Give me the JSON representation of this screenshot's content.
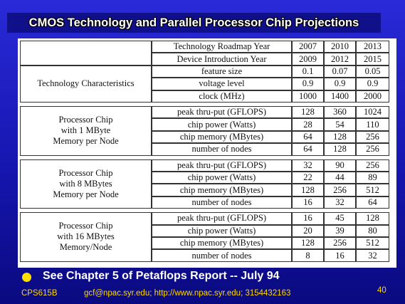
{
  "header": {
    "title": "CMOS Technology and Parallel Processor Chip Projections"
  },
  "table": {
    "header_rows": [
      {
        "label": "Technology Roadmap Year",
        "values": [
          "2007",
          "2010",
          "2013"
        ]
      },
      {
        "label": "Device Introduction Year",
        "values": [
          "2009",
          "2012",
          "2015"
        ]
      }
    ],
    "groups": [
      {
        "label_lines": [
          "Technology Characteristics"
        ],
        "rows": [
          {
            "label": "feature size",
            "values": [
              "0.1",
              "0.07",
              "0.05"
            ]
          },
          {
            "label": "voltage level",
            "values": [
              "0.9",
              "0.9",
              "0.9"
            ]
          },
          {
            "label": "clock (MHz)",
            "values": [
              "1000",
              "1400",
              "2000"
            ]
          }
        ]
      },
      {
        "label_lines": [
          "Processor Chip",
          "with 1 MByte",
          "Memory per Node"
        ],
        "rows": [
          {
            "label": "peak thru-put (GFLOPS)",
            "values": [
              "128",
              "360",
              "1024"
            ]
          },
          {
            "label": "chip power (Watts)",
            "values": [
              "28",
              "54",
              "110"
            ]
          },
          {
            "label": "chip memory (MBytes)",
            "values": [
              "64",
              "128",
              "256"
            ]
          },
          {
            "label": "number of nodes",
            "values": [
              "64",
              "128",
              "256"
            ]
          }
        ]
      },
      {
        "label_lines": [
          "Processor Chip",
          "with 8 MBytes",
          "Memory per Node"
        ],
        "rows": [
          {
            "label": "peak thru-put (GFLOPS)",
            "values": [
              "32",
              "90",
              "256"
            ]
          },
          {
            "label": "chip power (Watts)",
            "values": [
              "22",
              "44",
              "89"
            ]
          },
          {
            "label": "chip memory (MBytes)",
            "values": [
              "128",
              "256",
              "512"
            ]
          },
          {
            "label": "number of nodes",
            "values": [
              "16",
              "32",
              "64"
            ]
          }
        ]
      },
      {
        "label_lines": [
          "Processor Chip",
          "with 16 MBytes",
          "Memory/Node"
        ],
        "rows": [
          {
            "label": "peak thru-put (GFLOPS)",
            "values": [
              "16",
              "45",
              "128"
            ]
          },
          {
            "label": "chip power (Watts)",
            "values": [
              "20",
              "39",
              "80"
            ]
          },
          {
            "label": "chip memory (MBytes)",
            "values": [
              "128",
              "256",
              "512"
            ]
          },
          {
            "label": "number of nodes",
            "values": [
              "8",
              "16",
              "32"
            ]
          }
        ]
      }
    ]
  },
  "footer": {
    "bullet": "See Chapter 5 of Petaflops Report -- July 94",
    "course": "CPS615B",
    "contact": "gcf@npac.syr.edu; http://www.npac.syr.edu; 3154432163",
    "page": "40"
  }
}
